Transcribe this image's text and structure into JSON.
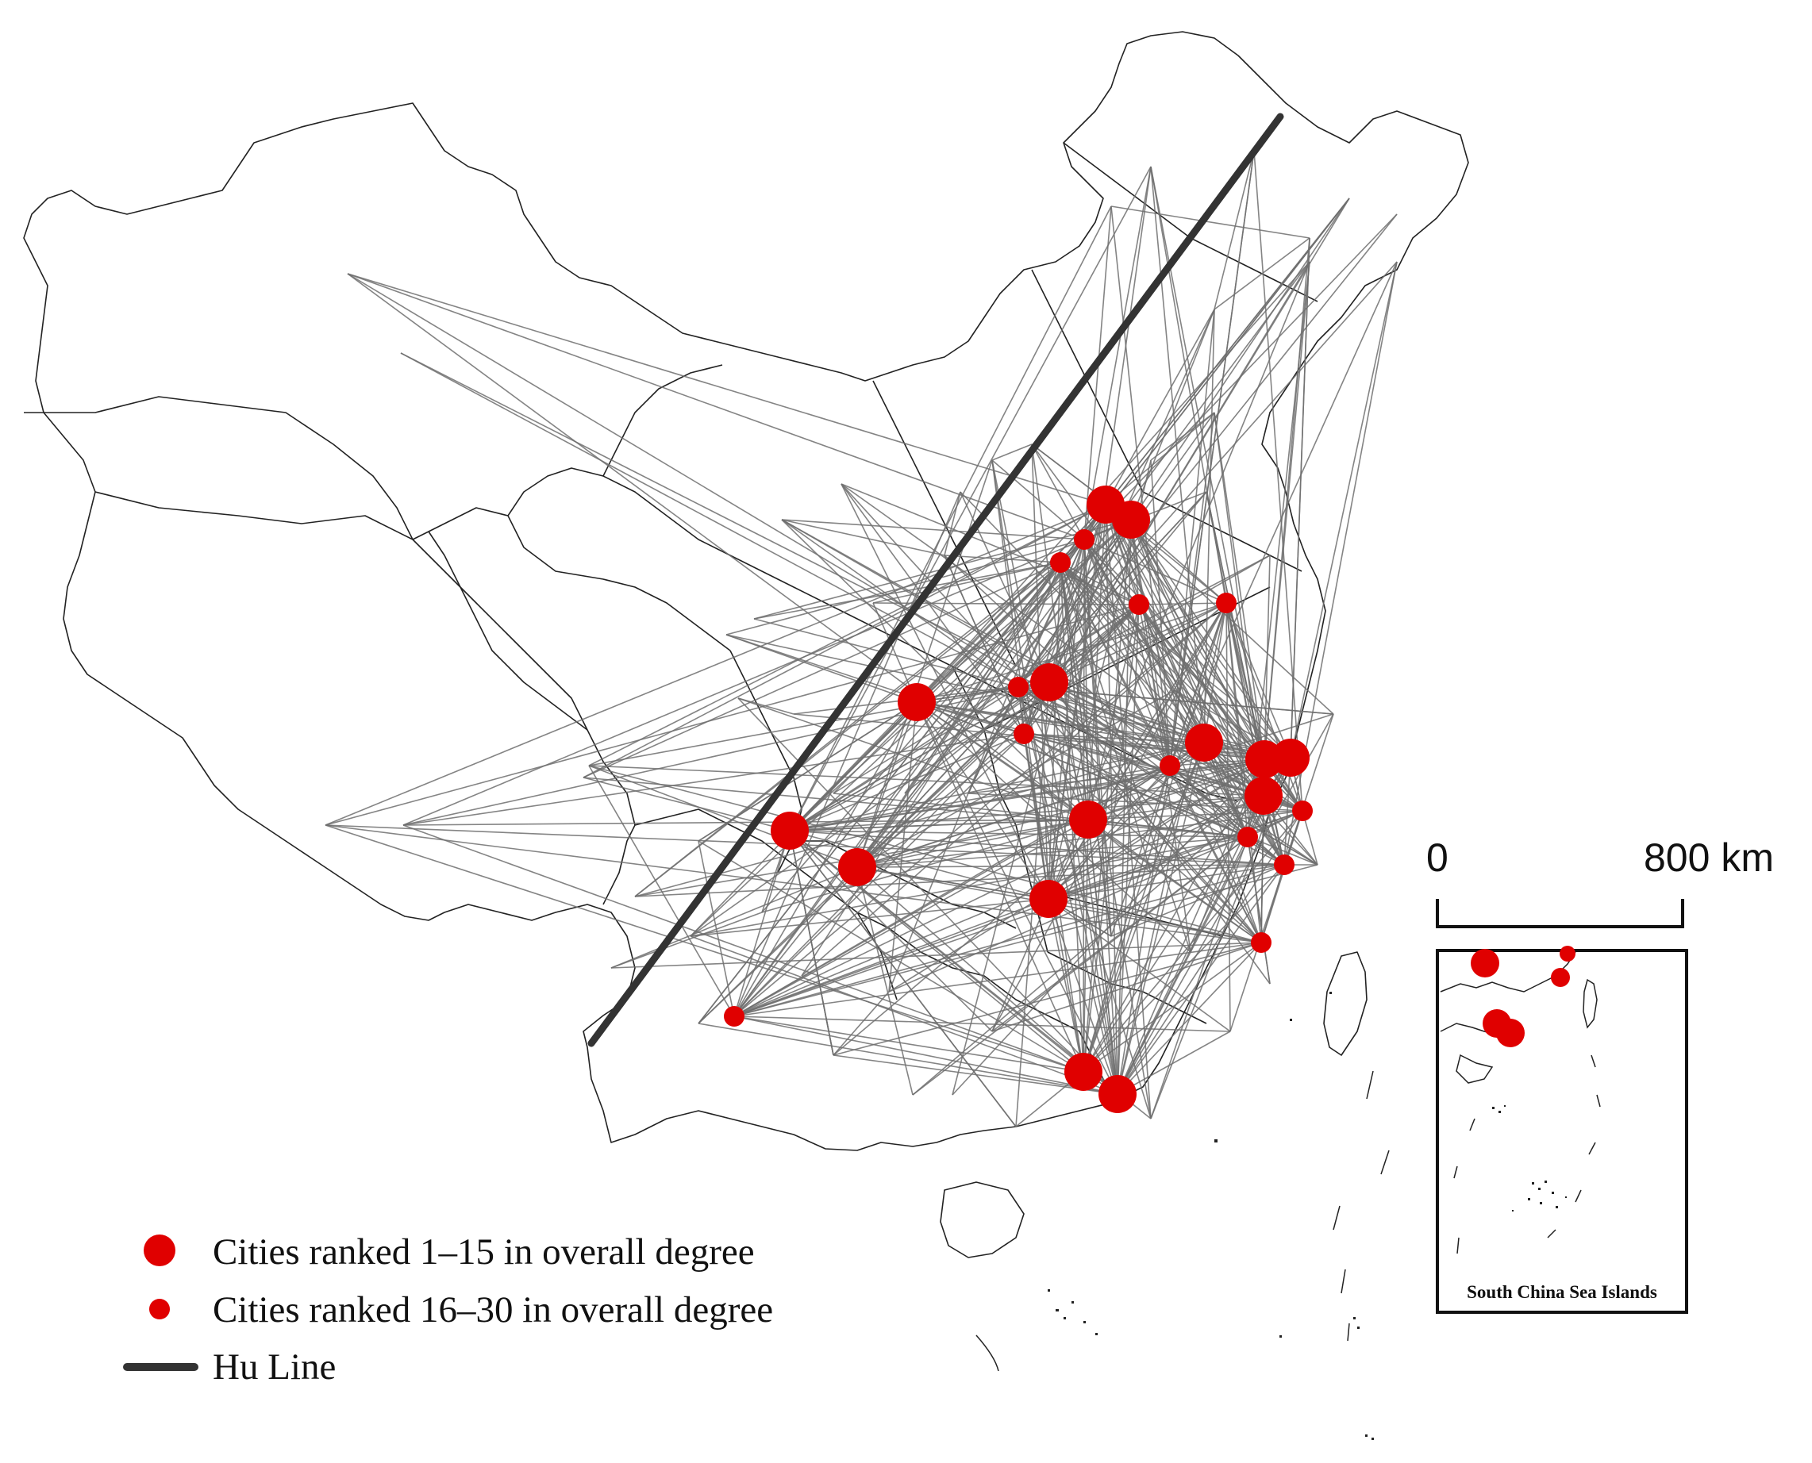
{
  "legend": {
    "large_label": "Cities ranked 1–15 in overall degree",
    "small_label": "Cities ranked 16–30 in overall degree",
    "line_label": "Hu Line"
  },
  "scale_bar": {
    "start_label": "0",
    "end_label": "800 km"
  },
  "inset": {
    "title": "South China Sea Islands"
  },
  "colors": {
    "city": "#e00000",
    "network_edge": "#6e6e6e",
    "hu_line": "#333333",
    "boundary": "#222222"
  }
}
